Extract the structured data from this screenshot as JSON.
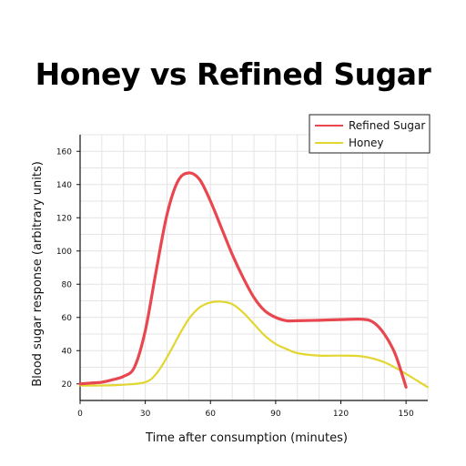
{
  "chart_data": {
    "type": "line",
    "title": "Honey vs Refined Sugar",
    "xlabel": "Time after consumption (minutes)",
    "ylabel": "Blood sugar response (arbitrary units)",
    "xlim": [
      0,
      160
    ],
    "ylim": [
      10,
      170
    ],
    "xticks": [
      0,
      30,
      60,
      90,
      120,
      150
    ],
    "yticks": [
      20,
      40,
      60,
      80,
      100,
      120,
      140,
      160
    ],
    "grid": true,
    "legend_position": "top-right",
    "series": [
      {
        "name": "Refined Sugar",
        "color": "#e8474f",
        "x": [
          0,
          5,
          10,
          15,
          20,
          25,
          30,
          35,
          40,
          45,
          50,
          55,
          60,
          65,
          70,
          75,
          80,
          85,
          90,
          95,
          100,
          110,
          120,
          130,
          135,
          140,
          145,
          150
        ],
        "y": [
          20,
          20.5,
          21,
          22.5,
          24.5,
          30,
          52,
          88,
          122,
          142,
          147,
          143,
          130,
          114,
          98,
          84,
          72,
          64,
          60,
          58,
          58,
          58.3,
          58.7,
          58.9,
          57,
          50,
          38,
          18
        ]
      },
      {
        "name": "Honey",
        "color": "#e2d630",
        "x": [
          0,
          10,
          20,
          30,
          35,
          40,
          45,
          50,
          55,
          60,
          65,
          70,
          75,
          80,
          85,
          90,
          95,
          100,
          110,
          120,
          130,
          140,
          150,
          155,
          160
        ],
        "y": [
          19,
          19,
          19.5,
          21,
          26,
          36,
          48,
          59,
          66,
          69,
          69.5,
          68,
          63,
          56,
          49,
          44,
          41,
          38.5,
          37,
          37,
          36.5,
          33,
          26,
          22,
          18
        ]
      }
    ]
  }
}
